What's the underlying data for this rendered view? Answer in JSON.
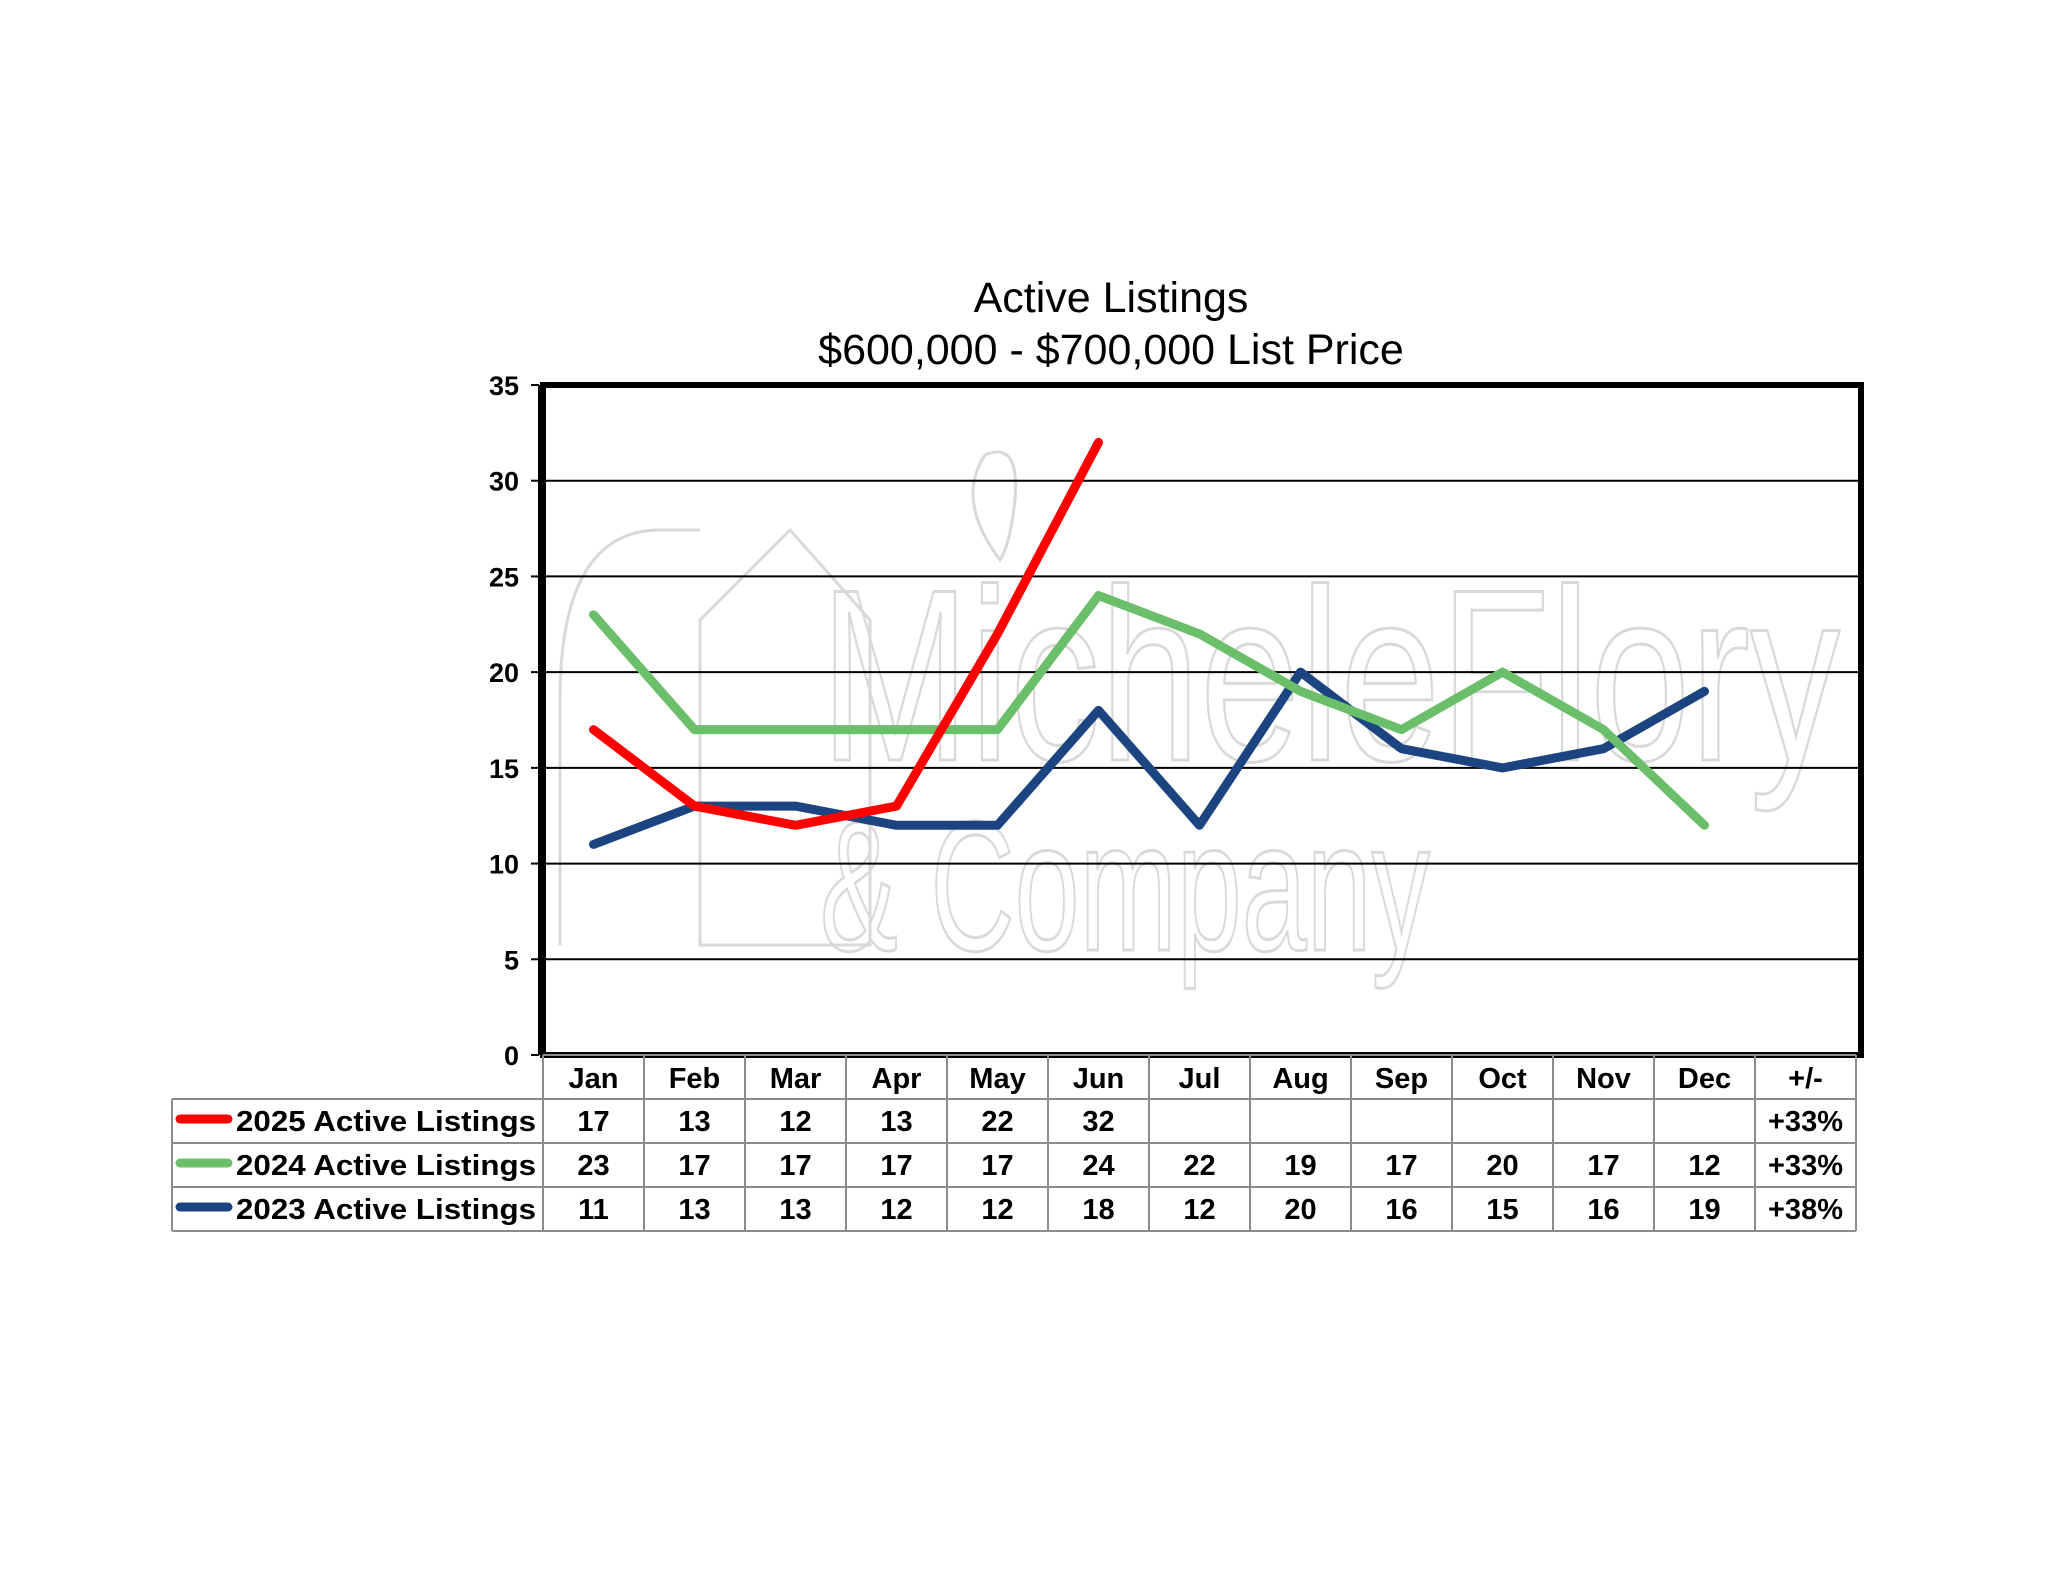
{
  "chart_data": {
    "type": "line",
    "title": "Active Listings",
    "subtitle": "$600,000 - $700,000 List Price",
    "categories": [
      "Jan",
      "Feb",
      "Mar",
      "Apr",
      "May",
      "Jun",
      "Jul",
      "Aug",
      "Sep",
      "Oct",
      "Nov",
      "Dec"
    ],
    "change_header": "+/-",
    "ylim": [
      0,
      35
    ],
    "yticks": [
      0,
      5,
      10,
      15,
      20,
      25,
      30,
      35
    ],
    "grid": true,
    "legend_position": "table-below",
    "series": [
      {
        "name": "2025 Active Listings",
        "color": "#ff0000",
        "values": [
          17,
          13,
          12,
          13,
          22,
          32,
          null,
          null,
          null,
          null,
          null,
          null
        ],
        "change": "+33%"
      },
      {
        "name": "2024 Active Listings",
        "color": "#6cbf6a",
        "values": [
          23,
          17,
          17,
          17,
          17,
          24,
          22,
          19,
          17,
          20,
          17,
          12
        ],
        "change": "+33%"
      },
      {
        "name": "2023 Active Listings",
        "color": "#1b4480",
        "values": [
          11,
          13,
          13,
          12,
          12,
          18,
          12,
          20,
          16,
          15,
          16,
          19
        ],
        "change": "+38%"
      }
    ],
    "watermark": [
      "MicheleFlory",
      "& Company"
    ]
  }
}
